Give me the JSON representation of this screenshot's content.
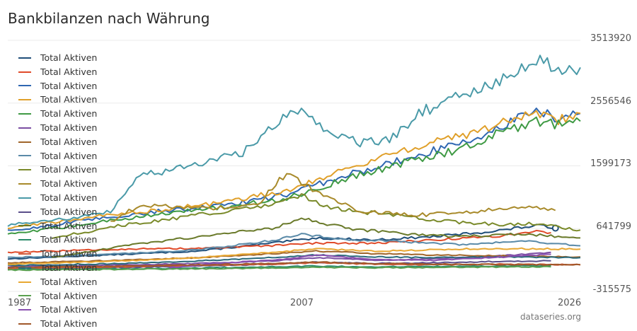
{
  "title": "Bankbilanzen nach Währung",
  "credit": "dataseries.org",
  "colors": {
    "grid": "#ebebeb",
    "palette": [
      "#1f4e79",
      "#e04b2a",
      "#2f67b2",
      "#e0a02a",
      "#3f9a44",
      "#7b4ea3",
      "#a0652a",
      "#5a8aa8",
      "#7a8a2a",
      "#a88a2a",
      "#4a9aa8",
      "#5a4e8a",
      "#6a7a2a",
      "#2a8a6a",
      "#d05a3a",
      "#2a6a7a",
      "#e8a832",
      "#5aa050",
      "#8a50b0",
      "#a0582a"
    ]
  },
  "chart_data": {
    "type": "line",
    "title": "Bankbilanzen nach Währung",
    "xlabel": "",
    "ylabel": "",
    "x_ticks": [
      "1987",
      "2007",
      "2026"
    ],
    "y_ticks": [
      "3513920",
      "2556546",
      "1599173",
      "641799",
      "-315575"
    ],
    "xlim": [
      1987,
      2026
    ],
    "ylim": [
      -315575,
      3513920
    ],
    "grid": true,
    "legend_position": "top-left",
    "series": [
      {
        "name": "Total Aktiven",
        "color": "#1f4e79",
        "points": [
          [
            1987,
            180000
          ],
          [
            1995,
            250000
          ],
          [
            2000,
            300000
          ],
          [
            2005,
            420000
          ],
          [
            2008,
            500000
          ],
          [
            2012,
            470000
          ],
          [
            2016,
            520000
          ],
          [
            2020,
            600000
          ],
          [
            2023,
            690000
          ],
          [
            2024.3,
            650000
          ]
        ],
        "end_marker": true
      },
      {
        "name": "Total Aktiven",
        "color": "#e04b2a",
        "points": [
          [
            1987,
            280000
          ],
          [
            1995,
            330000
          ],
          [
            2000,
            340000
          ],
          [
            2005,
            380000
          ],
          [
            2008,
            420000
          ],
          [
            2012,
            420000
          ],
          [
            2016,
            470000
          ],
          [
            2020,
            520000
          ],
          [
            2023,
            600000
          ],
          [
            2024,
            580000
          ]
        ]
      },
      {
        "name": "Total Aktiven",
        "color": "#2f67b2",
        "points": [
          [
            1987,
            600000
          ],
          [
            1992,
            760000
          ],
          [
            1997,
            900000
          ],
          [
            2002,
            1000000
          ],
          [
            2006,
            1160000
          ],
          [
            2010,
            1450000
          ],
          [
            2014,
            1700000
          ],
          [
            2018,
            1950000
          ],
          [
            2021,
            2250000
          ],
          [
            2023,
            2420000
          ],
          [
            2024.5,
            2330000
          ],
          [
            2026,
            2400000
          ]
        ]
      },
      {
        "name": "Total Aktiven",
        "color": "#e0a02a",
        "points": [
          [
            1987,
            650000
          ],
          [
            1992,
            800000
          ],
          [
            1997,
            920000
          ],
          [
            2002,
            1050000
          ],
          [
            2006,
            1230000
          ],
          [
            2010,
            1550000
          ],
          [
            2014,
            1850000
          ],
          [
            2018,
            2050000
          ],
          [
            2021,
            2300000
          ],
          [
            2023,
            2380000
          ],
          [
            2024.5,
            2300000
          ],
          [
            2026,
            2400000
          ]
        ]
      },
      {
        "name": "Total Aktiven",
        "color": "#3f9a44",
        "points": [
          [
            1987,
            550000
          ],
          [
            1992,
            700000
          ],
          [
            1997,
            860000
          ],
          [
            2002,
            980000
          ],
          [
            2006,
            1100000
          ],
          [
            2010,
            1400000
          ],
          [
            2014,
            1650000
          ],
          [
            2018,
            1870000
          ],
          [
            2021,
            2150000
          ],
          [
            2023,
            2280000
          ],
          [
            2024.5,
            2220000
          ],
          [
            2026,
            2280000
          ]
        ]
      },
      {
        "name": "Total Aktiven",
        "color": "#7b4ea3",
        "points": [
          [
            1987,
            60000
          ],
          [
            1995,
            90000
          ],
          [
            2000,
            110000
          ],
          [
            2005,
            150000
          ],
          [
            2008,
            200000
          ],
          [
            2012,
            160000
          ],
          [
            2016,
            180000
          ],
          [
            2020,
            220000
          ],
          [
            2023,
            260000
          ],
          [
            2024,
            280000
          ]
        ]
      },
      {
        "name": "Total Aktiven",
        "color": "#a0652a",
        "points": [
          [
            1987,
            120000
          ],
          [
            1995,
            160000
          ],
          [
            2000,
            200000
          ],
          [
            2005,
            260000
          ],
          [
            2008,
            300000
          ],
          [
            2012,
            260000
          ],
          [
            2016,
            240000
          ],
          [
            2020,
            230000
          ],
          [
            2023,
            220000
          ],
          [
            2026,
            210000
          ]
        ]
      },
      {
        "name": "Total Aktiven",
        "color": "#5a8aa8",
        "points": [
          [
            1987,
            200000
          ],
          [
            1995,
            260000
          ],
          [
            2000,
            320000
          ],
          [
            2005,
            460000
          ],
          [
            2007,
            560000
          ],
          [
            2010,
            480000
          ],
          [
            2014,
            440000
          ],
          [
            2018,
            400000
          ],
          [
            2022,
            450000
          ],
          [
            2026,
            380000
          ]
        ]
      },
      {
        "name": "Total Aktiven",
        "color": "#7a8a2a",
        "points": [
          [
            1990,
            500000
          ],
          [
            1995,
            700000
          ],
          [
            2000,
            850000
          ],
          [
            2005,
            1000000
          ],
          [
            2007,
            1150000
          ],
          [
            2009,
            950000
          ],
          [
            2013,
            850000
          ],
          [
            2017,
            750000
          ],
          [
            2021,
            700000
          ],
          [
            2023,
            720000
          ],
          [
            2026,
            620000
          ]
        ]
      },
      {
        "name": "Total Aktiven",
        "color": "#a88a2a",
        "points": [
          [
            1994,
            750000
          ],
          [
            1996,
            1000000
          ],
          [
            2000,
            950000
          ],
          [
            2004,
            1000000
          ],
          [
            2006,
            1500000
          ],
          [
            2008,
            1200000
          ],
          [
            2011,
            900000
          ],
          [
            2015,
            850000
          ],
          [
            2019,
            900000
          ],
          [
            2022,
            980000
          ],
          [
            2024.3,
            920000
          ]
        ]
      },
      {
        "name": "Total Aktiven",
        "color": "#4a9aa8",
        "points": [
          [
            1987,
            700000
          ],
          [
            1991,
            800000
          ],
          [
            1994,
            900000
          ],
          [
            1996,
            1450000
          ],
          [
            2000,
            1620000
          ],
          [
            2003,
            1800000
          ],
          [
            2005,
            2200000
          ],
          [
            2007,
            2500000
          ],
          [
            2009,
            2100000
          ],
          [
            2011,
            1950000
          ],
          [
            2013,
            2000000
          ],
          [
            2015,
            2400000
          ],
          [
            2017,
            2600000
          ],
          [
            2020,
            2850000
          ],
          [
            2022,
            3100000
          ],
          [
            2023,
            3250000
          ],
          [
            2025,
            3050000
          ],
          [
            2026,
            3100000
          ]
        ]
      },
      {
        "name": "Total Aktiven",
        "color": "#5a4e8a",
        "points": [
          [
            1987,
            30000
          ],
          [
            1995,
            50000
          ],
          [
            2000,
            70000
          ],
          [
            2005,
            100000
          ],
          [
            2008,
            130000
          ],
          [
            2012,
            110000
          ],
          [
            2016,
            120000
          ],
          [
            2020,
            140000
          ],
          [
            2024,
            150000
          ]
        ]
      },
      {
        "name": "Total Aktiven",
        "color": "#6a7a2a",
        "points": [
          [
            1990,
            200000
          ],
          [
            1995,
            380000
          ],
          [
            2000,
            520000
          ],
          [
            2005,
            650000
          ],
          [
            2007,
            800000
          ],
          [
            2010,
            650000
          ],
          [
            2014,
            560000
          ],
          [
            2018,
            520000
          ],
          [
            2022,
            560000
          ],
          [
            2026,
            500000
          ]
        ]
      },
      {
        "name": "Total Aktiven",
        "color": "#2a8a6a",
        "points": [
          [
            1987,
            20000
          ],
          [
            1995,
            30000
          ],
          [
            2000,
            40000
          ],
          [
            2005,
            60000
          ],
          [
            2008,
            70000
          ],
          [
            2012,
            60000
          ],
          [
            2016,
            65000
          ],
          [
            2020,
            70000
          ],
          [
            2024,
            80000
          ]
        ]
      },
      {
        "name": "Total Aktiven",
        "color": "#d05a3a",
        "points": [
          [
            1987,
            40000
          ],
          [
            1995,
            60000
          ],
          [
            2000,
            80000
          ],
          [
            2005,
            100000
          ],
          [
            2008,
            120000
          ],
          [
            2012,
            100000
          ],
          [
            2016,
            90000
          ],
          [
            2020,
            100000
          ],
          [
            2026,
            90000
          ]
        ]
      },
      {
        "name": "Total Aktiven",
        "color": "#2a6a7a",
        "points": [
          [
            1987,
            80000
          ],
          [
            1995,
            110000
          ],
          [
            2000,
            150000
          ],
          [
            2005,
            200000
          ],
          [
            2008,
            240000
          ],
          [
            2012,
            210000
          ],
          [
            2016,
            200000
          ],
          [
            2020,
            210000
          ],
          [
            2026,
            200000
          ]
        ]
      },
      {
        "name": "Total Aktiven",
        "color": "#e8a832",
        "points": [
          [
            1987,
            100000
          ],
          [
            1995,
            150000
          ],
          [
            2000,
            200000
          ],
          [
            2005,
            280000
          ],
          [
            2008,
            330000
          ],
          [
            2012,
            300000
          ],
          [
            2016,
            320000
          ],
          [
            2020,
            340000
          ],
          [
            2026,
            330000
          ]
        ]
      },
      {
        "name": "Total Aktiven",
        "color": "#5aa050",
        "points": [
          [
            1987,
            10000
          ],
          [
            1995,
            20000
          ],
          [
            2000,
            30000
          ],
          [
            2005,
            40000
          ],
          [
            2008,
            50000
          ],
          [
            2012,
            45000
          ],
          [
            2016,
            50000
          ],
          [
            2020,
            55000
          ],
          [
            2024,
            60000
          ]
        ]
      },
      {
        "name": "Total Aktiven",
        "color": "#8a50b0",
        "points": [
          [
            1998,
            50000
          ],
          [
            2002,
            120000
          ],
          [
            2006,
            180000
          ],
          [
            2008,
            240000
          ],
          [
            2012,
            170000
          ],
          [
            2016,
            160000
          ],
          [
            2020,
            200000
          ],
          [
            2024,
            250000
          ]
        ]
      },
      {
        "name": "Total Aktiven",
        "color": "#a0582a",
        "points": [
          [
            1987,
            50000
          ],
          [
            1995,
            70000
          ],
          [
            2000,
            90000
          ],
          [
            2005,
            110000
          ],
          [
            2008,
            130000
          ],
          [
            2012,
            110000
          ],
          [
            2016,
            100000
          ],
          [
            2020,
            95000
          ],
          [
            2026,
            90000
          ]
        ]
      }
    ]
  }
}
